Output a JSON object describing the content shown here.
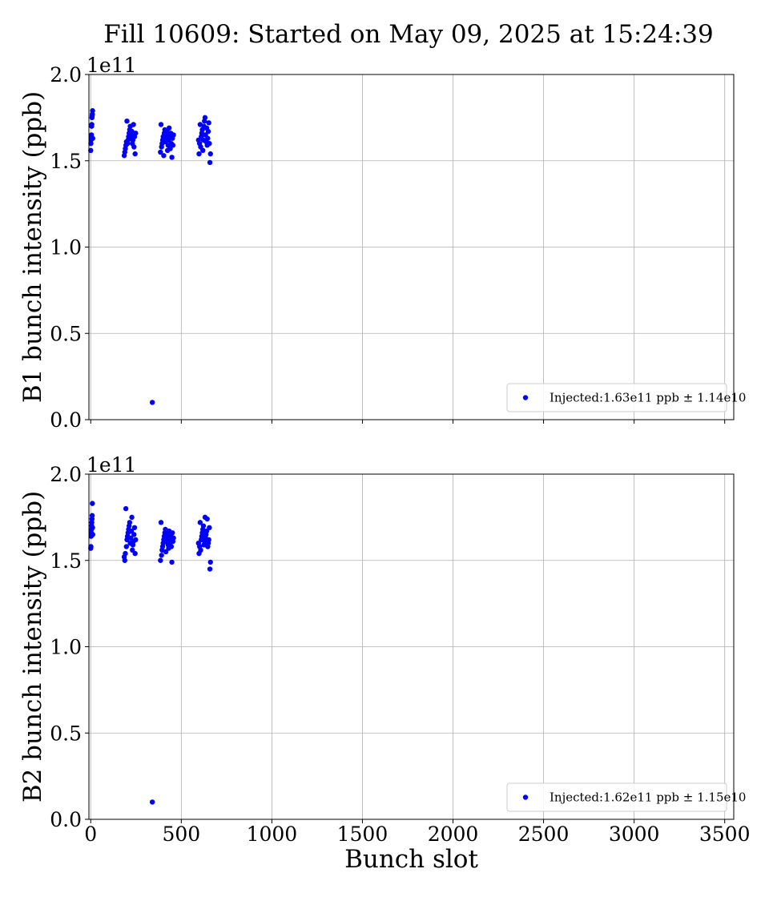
{
  "title": "Fill 10609: Started on May 09, 2025 at 15:24:39",
  "chart_data": [
    {
      "type": "scatter",
      "title": "",
      "xlabel": "",
      "ylabel": "B1 bunch intensity (ppb)",
      "y_offset_label": "1e11",
      "xlim": [
        -10,
        3550
      ],
      "ylim": [
        0,
        200000000000.0
      ],
      "grid": true,
      "x_ticks": [
        0,
        500,
        1000,
        1500,
        2000,
        2500,
        3000,
        3500
      ],
      "x_tick_labels_shown": false,
      "y_ticks": [
        0,
        50000000000.0,
        100000000000.0,
        150000000000.0,
        200000000000.0
      ],
      "y_tick_labels": [
        "0.0",
        "0.5",
        "1.0",
        "1.5",
        "2.0"
      ],
      "legend_position": "lower-right",
      "series": [
        {
          "name": "Injected:1.63e11 ppb ± 1.14e10",
          "color": "#0000ff",
          "x": [
            0,
            1,
            2,
            3,
            4,
            5,
            6,
            7,
            8,
            9,
            10,
            11,
            185,
            188,
            191,
            194,
            197,
            200,
            203,
            206,
            209,
            212,
            215,
            218,
            221,
            224,
            227,
            230,
            233,
            236,
            239,
            242,
            245,
            248,
            340,
            385,
            388,
            391,
            394,
            397,
            400,
            403,
            406,
            409,
            412,
            415,
            418,
            421,
            424,
            427,
            430,
            433,
            436,
            439,
            442,
            445,
            448,
            451,
            454,
            457,
            595,
            598,
            601,
            604,
            607,
            610,
            613,
            616,
            619,
            622,
            625,
            628,
            631,
            634,
            637,
            640,
            643,
            646,
            649,
            652,
            655,
            658,
            661
          ],
          "y": [
            156000000000.0,
            160000000000.0,
            162000000000.0,
            164000000000.0,
            165000000000.0,
            170000000000.0,
            171000000000.0,
            175000000000.0,
            176000000000.0,
            177000000000.0,
            179000000000.0,
            163000000000.0,
            153000000000.0,
            155000000000.0,
            157000000000.0,
            159000000000.0,
            161000000000.0,
            173000000000.0,
            160000000000.0,
            162000000000.0,
            164000000000.0,
            166000000000.0,
            168000000000.0,
            170000000000.0,
            163000000000.0,
            165000000000.0,
            167000000000.0,
            160000000000.0,
            162000000000.0,
            171000000000.0,
            158000000000.0,
            164000000000.0,
            154000000000.0,
            166000000000.0,
            10000000000.0,
            155000000000.0,
            171000000000.0,
            158000000000.0,
            160000000000.0,
            162000000000.0,
            164000000000.0,
            153000000000.0,
            166000000000.0,
            168000000000.0,
            161000000000.0,
            163000000000.0,
            165000000000.0,
            167000000000.0,
            156000000000.0,
            159000000000.0,
            162000000000.0,
            169000000000.0,
            164000000000.0,
            157000000000.0,
            166000000000.0,
            160000000000.0,
            152000000000.0,
            163000000000.0,
            159000000000.0,
            165000000000.0,
            162000000000.0,
            154000000000.0,
            160000000000.0,
            171000000000.0,
            158000000000.0,
            164000000000.0,
            166000000000.0,
            168000000000.0,
            156000000000.0,
            162000000000.0,
            170000000000.0,
            173000000000.0,
            175000000000.0,
            165000000000.0,
            161000000000.0,
            169000000000.0,
            159000000000.0,
            163000000000.0,
            167000000000.0,
            172000000000.0,
            160000000000.0,
            149000000000.0,
            154000000000.0
          ]
        }
      ]
    },
    {
      "type": "scatter",
      "title": "",
      "xlabel": "Bunch slot",
      "ylabel": "B2 bunch intensity (ppb)",
      "y_offset_label": "1e11",
      "xlim": [
        -10,
        3550
      ],
      "ylim": [
        0,
        200000000000.0
      ],
      "grid": true,
      "x_ticks": [
        0,
        500,
        1000,
        1500,
        2000,
        2500,
        3000,
        3500
      ],
      "x_tick_labels": [
        "0",
        "500",
        "1000",
        "1500",
        "2000",
        "2500",
        "3000",
        "3500"
      ],
      "y_ticks": [
        0,
        50000000000.0,
        100000000000.0,
        150000000000.0,
        200000000000.0
      ],
      "y_tick_labels": [
        "0.0",
        "0.5",
        "1.0",
        "1.5",
        "2.0"
      ],
      "legend_position": "lower-right",
      "series": [
        {
          "name": "Injected:1.62e11 ppb ± 1.15e10",
          "color": "#0000ff",
          "x": [
            0,
            1,
            2,
            3,
            4,
            5,
            6,
            7,
            8,
            9,
            10,
            11,
            185,
            188,
            191,
            194,
            197,
            200,
            203,
            206,
            209,
            212,
            215,
            218,
            221,
            224,
            227,
            230,
            233,
            236,
            239,
            242,
            245,
            248,
            340,
            385,
            388,
            391,
            394,
            397,
            400,
            403,
            406,
            409,
            412,
            415,
            418,
            421,
            424,
            427,
            430,
            433,
            436,
            439,
            442,
            445,
            448,
            451,
            454,
            457,
            595,
            598,
            601,
            604,
            607,
            610,
            613,
            616,
            619,
            622,
            625,
            628,
            631,
            634,
            637,
            640,
            643,
            646,
            649,
            652,
            655,
            658,
            661
          ],
          "y": [
            157000000000.0,
            158000000000.0,
            164000000000.0,
            166000000000.0,
            168000000000.0,
            170000000000.0,
            172000000000.0,
            174000000000.0,
            176000000000.0,
            183000000000.0,
            169000000000.0,
            165000000000.0,
            152000000000.0,
            150000000000.0,
            154000000000.0,
            180000000000.0,
            158000000000.0,
            162000000000.0,
            164000000000.0,
            166000000000.0,
            168000000000.0,
            170000000000.0,
            172000000000.0,
            160000000000.0,
            163000000000.0,
            167000000000.0,
            175000000000.0,
            156000000000.0,
            159000000000.0,
            161000000000.0,
            165000000000.0,
            169000000000.0,
            154000000000.0,
            162000000000.0,
            10000000000.0,
            150000000000.0,
            172000000000.0,
            153000000000.0,
            156000000000.0,
            158000000000.0,
            160000000000.0,
            162000000000.0,
            164000000000.0,
            166000000000.0,
            168000000000.0,
            155000000000.0,
            161000000000.0,
            163000000000.0,
            165000000000.0,
            159000000000.0,
            157000000000.0,
            167000000000.0,
            162000000000.0,
            160000000000.0,
            164000000000.0,
            158000000000.0,
            149000000000.0,
            166000000000.0,
            161000000000.0,
            163000000000.0,
            160000000000.0,
            154000000000.0,
            158000000000.0,
            172000000000.0,
            156000000000.0,
            162000000000.0,
            164000000000.0,
            166000000000.0,
            168000000000.0,
            170000000000.0,
            159000000000.0,
            161000000000.0,
            175000000000.0,
            163000000000.0,
            165000000000.0,
            167000000000.0,
            174000000000.0,
            158000000000.0,
            160000000000.0,
            162000000000.0,
            169000000000.0,
            145000000000.0,
            149000000000.0
          ]
        }
      ]
    }
  ]
}
